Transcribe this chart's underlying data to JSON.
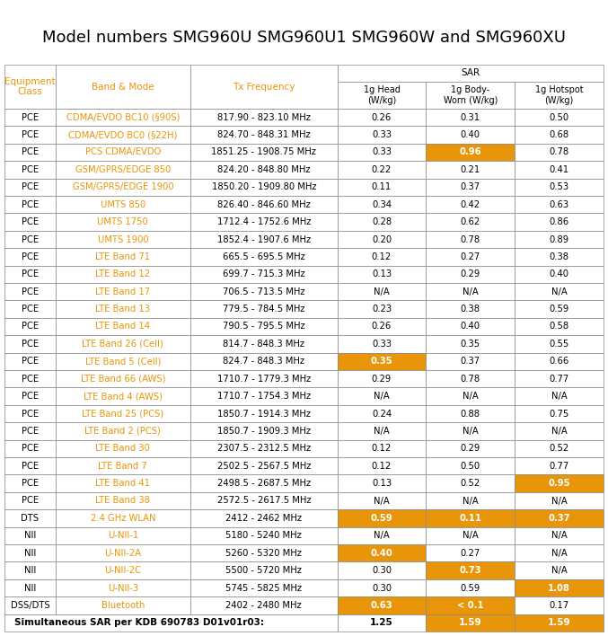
{
  "title": "Model numbers SMG960U SMG960U1 SMG960W and SMG960XU",
  "title_fontsize": 13,
  "highlight_color": "#E8950A",
  "orange_text": "#E8950A",
  "black_text": "#000000",
  "white": "#FFFFFF",
  "border_color": "#888888",
  "rows": [
    [
      "PCE",
      "CDMA/EVDO BC10 (§90S)",
      "817.90 - 823.10 MHz",
      "0.26",
      "0.31",
      "0.50",
      false,
      false,
      false
    ],
    [
      "PCE",
      "CDMA/EVDO BC0 (§22H)",
      "824.70 - 848.31 MHz",
      "0.33",
      "0.40",
      "0.68",
      false,
      false,
      false
    ],
    [
      "PCE",
      "PCS CDMA/EVDO",
      "1851.25 - 1908.75 MHz",
      "0.33",
      "0.96",
      "0.78",
      false,
      true,
      false
    ],
    [
      "PCE",
      "GSM/GPRS/EDGE 850",
      "824.20 - 848.80 MHz",
      "0.22",
      "0.21",
      "0.41",
      false,
      false,
      false
    ],
    [
      "PCE",
      "GSM/GPRS/EDGE 1900",
      "1850.20 - 1909.80 MHz",
      "0.11",
      "0.37",
      "0.53",
      false,
      false,
      false
    ],
    [
      "PCE",
      "UMTS 850",
      "826.40 - 846.60 MHz",
      "0.34",
      "0.42",
      "0.63",
      false,
      false,
      false
    ],
    [
      "PCE",
      "UMTS 1750",
      "1712.4 - 1752.6 MHz",
      "0.28",
      "0.62",
      "0.86",
      false,
      false,
      false
    ],
    [
      "PCE",
      "UMTS 1900",
      "1852.4 - 1907.6 MHz",
      "0.20",
      "0.78",
      "0.89",
      false,
      false,
      false
    ],
    [
      "PCE",
      "LTE Band 71",
      "665.5 - 695.5 MHz",
      "0.12",
      "0.27",
      "0.38",
      false,
      false,
      false
    ],
    [
      "PCE",
      "LTE Band 12",
      "699.7 - 715.3 MHz",
      "0.13",
      "0.29",
      "0.40",
      false,
      false,
      false
    ],
    [
      "PCE",
      "LTE Band 17",
      "706.5 - 713.5 MHz",
      "N/A",
      "N/A",
      "N/A",
      false,
      false,
      false
    ],
    [
      "PCE",
      "LTE Band 13",
      "779.5 - 784.5 MHz",
      "0.23",
      "0.38",
      "0.59",
      false,
      false,
      false
    ],
    [
      "PCE",
      "LTE Band 14",
      "790.5 - 795.5 MHz",
      "0.26",
      "0.40",
      "0.58",
      false,
      false,
      false
    ],
    [
      "PCE",
      "LTE Band 26 (Cell)",
      "814.7 - 848.3 MHz",
      "0.33",
      "0.35",
      "0.55",
      false,
      false,
      false
    ],
    [
      "PCE",
      "LTE Band 5 (Cell)",
      "824.7 - 848.3 MHz",
      "0.35",
      "0.37",
      "0.66",
      true,
      false,
      false
    ],
    [
      "PCE",
      "LTE Band 66 (AWS)",
      "1710.7 - 1779.3 MHz",
      "0.29",
      "0.78",
      "0.77",
      false,
      false,
      false
    ],
    [
      "PCE",
      "LTE Band 4 (AWS)",
      "1710.7 - 1754.3 MHz",
      "N/A",
      "N/A",
      "N/A",
      false,
      false,
      false
    ],
    [
      "PCE",
      "LTE Band 25 (PCS)",
      "1850.7 - 1914.3 MHz",
      "0.24",
      "0.88",
      "0.75",
      false,
      false,
      false
    ],
    [
      "PCE",
      "LTE Band 2 (PCS)",
      "1850.7 - 1909.3 MHz",
      "N/A",
      "N/A",
      "N/A",
      false,
      false,
      false
    ],
    [
      "PCE",
      "LTE Band 30",
      "2307.5 - 2312.5 MHz",
      "0.12",
      "0.29",
      "0.52",
      false,
      false,
      false
    ],
    [
      "PCE",
      "LTE Band 7",
      "2502.5 - 2567.5 MHz",
      "0.12",
      "0.50",
      "0.77",
      false,
      false,
      false
    ],
    [
      "PCE",
      "LTE Band 41",
      "2498.5 - 2687.5 MHz",
      "0.13",
      "0.52",
      "0.95",
      false,
      false,
      true
    ],
    [
      "PCE",
      "LTE Band 38",
      "2572.5 - 2617.5 MHz",
      "N/A",
      "N/A",
      "N/A",
      false,
      false,
      false
    ],
    [
      "DTS",
      "2.4 GHz WLAN",
      "2412 - 2462 MHz",
      "0.59",
      "0.11",
      "0.37",
      true,
      true,
      true
    ],
    [
      "NII",
      "U-NII-1",
      "5180 - 5240 MHz",
      "N/A",
      "N/A",
      "N/A",
      false,
      false,
      false
    ],
    [
      "NII",
      "U-NII-2A",
      "5260 - 5320 MHz",
      "0.40",
      "0.27",
      "N/A",
      true,
      false,
      false
    ],
    [
      "NII",
      "U-NII-2C",
      "5500 - 5720 MHz",
      "0.30",
      "0.73",
      "N/A",
      false,
      true,
      false
    ],
    [
      "NII",
      "U-NII-3",
      "5745 - 5825 MHz",
      "0.30",
      "0.59",
      "1.08",
      false,
      false,
      true
    ],
    [
      "DSS/DTS",
      "Bluetooth",
      "2402 - 2480 MHz",
      "0.63",
      "< 0.1",
      "0.17",
      true,
      true,
      false
    ]
  ],
  "last_row_text": "Simultaneous SAR per KDB 690783 D01v01r03:",
  "last_row_vals": [
    "1.25",
    "1.59",
    "1.59"
  ],
  "last_row_hl": [
    false,
    true,
    true
  ]
}
